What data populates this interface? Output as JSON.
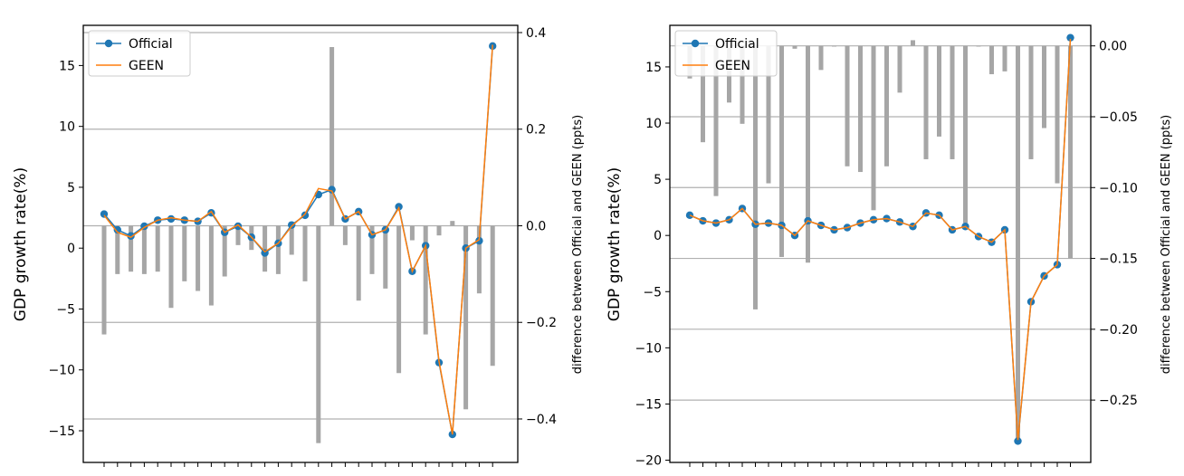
{
  "colors": {
    "official": "#1f77b4",
    "geen": "#ff7f0e",
    "bar": "#a6a6a6",
    "grid": "#b0b0b0"
  },
  "chart_data": [
    {
      "type": "line+bar",
      "ylabel": "GDP growth rate(%)",
      "y2label": "difference between Official and GEEN (ppts)",
      "ylim": [
        -17.6,
        18.3
      ],
      "y2lim": [
        -0.49,
        0.415
      ],
      "yticks": [
        15,
        10,
        5,
        0,
        -5,
        -10,
        -15
      ],
      "ytick_labels": [
        "15",
        "10",
        "5",
        "0",
        "−5",
        "−10",
        "−15"
      ],
      "y2ticks": [
        0.4,
        0.2,
        0.0,
        -0.2,
        -0.4
      ],
      "y2tick_labels": [
        "0.4",
        "0.2",
        "0.0",
        "−0.2",
        "−0.4"
      ],
      "legend": {
        "position": "top-left",
        "entries": [
          "Official",
          "GEEN"
        ]
      },
      "series": [
        {
          "name": "Official",
          "values": [
            2.8,
            1.5,
            1.0,
            1.8,
            2.3,
            2.4,
            2.3,
            2.2,
            2.9,
            1.3,
            1.8,
            0.9,
            -0.4,
            0.4,
            1.9,
            2.7,
            4.4,
            4.8,
            2.4,
            3.0,
            1.1,
            1.5,
            3.4,
            -1.9,
            0.2,
            -9.4,
            -15.3,
            0.0,
            0.6,
            16.6
          ]
        },
        {
          "name": "GEEN",
          "values": [
            2.7,
            1.3,
            0.9,
            1.7,
            2.3,
            2.5,
            2.3,
            2.2,
            3.0,
            1.3,
            1.9,
            0.9,
            -0.3,
            0.4,
            1.8,
            2.8,
            4.9,
            4.7,
            2.4,
            3.0,
            1.1,
            1.5,
            3.3,
            -1.9,
            0.2,
            -9.3,
            -15.3,
            0.0,
            0.7,
            16.7
          ]
        }
      ],
      "differences": [
        -0.225,
        -0.1,
        -0.095,
        -0.1,
        -0.095,
        -0.17,
        -0.115,
        -0.135,
        -0.165,
        -0.105,
        -0.04,
        -0.05,
        -0.095,
        -0.1,
        -0.06,
        -0.115,
        -0.45,
        0.37,
        -0.04,
        -0.155,
        -0.1,
        -0.13,
        -0.305,
        -0.03,
        -0.225,
        -0.02,
        0.01,
        -0.38,
        -0.14,
        -0.29
      ]
    },
    {
      "type": "line+bar",
      "ylabel": "GDP growth rate(%)",
      "y2label": "difference between Official and GEEN (ppts)",
      "ylim": [
        -20.2,
        18.7
      ],
      "y2lim": [
        -0.294,
        0.0145
      ],
      "yticks": [
        15,
        10,
        5,
        0,
        -5,
        -10,
        -15,
        -20
      ],
      "ytick_labels": [
        "15",
        "10",
        "5",
        "0",
        "−5",
        "−10",
        "−15",
        "−20"
      ],
      "y2ticks": [
        0.0,
        -0.05,
        -0.1,
        -0.15,
        -0.2,
        -0.25
      ],
      "y2tick_labels": [
        "0.00",
        "−0.05",
        "−0.10",
        "−0.15",
        "−0.20",
        "−0.25"
      ],
      "legend": {
        "position": "top-left",
        "entries": [
          "Official",
          "GEEN"
        ]
      },
      "series": [
        {
          "name": "Official",
          "values": [
            1.8,
            1.3,
            1.1,
            1.4,
            2.4,
            1.0,
            1.1,
            0.9,
            0.0,
            1.3,
            0.9,
            0.5,
            0.7,
            1.1,
            1.4,
            1.5,
            1.2,
            0.8,
            2.0,
            1.8,
            0.5,
            0.8,
            -0.1,
            -0.6,
            0.5,
            -18.3,
            -5.9,
            -3.6,
            -2.6,
            17.6
          ]
        },
        {
          "name": "GEEN",
          "values": [
            1.8,
            1.3,
            1.1,
            1.4,
            2.4,
            1.0,
            1.1,
            0.9,
            0.0,
            1.3,
            0.9,
            0.5,
            0.7,
            1.1,
            1.4,
            1.5,
            1.2,
            0.8,
            2.0,
            1.8,
            0.5,
            0.8,
            -0.1,
            -0.6,
            0.5,
            -18.2,
            -5.9,
            -3.6,
            -2.6,
            17.5
          ]
        }
      ],
      "differences": [
        -0.023,
        -0.068,
        -0.106,
        -0.04,
        -0.055,
        -0.186,
        -0.097,
        -0.149,
        -0.002,
        -0.153,
        -0.017,
        0.0,
        -0.085,
        -0.089,
        -0.116,
        -0.085,
        -0.033,
        0.004,
        -0.08,
        -0.064,
        -0.08,
        -0.125,
        0.0,
        -0.02,
        -0.018,
        -0.279,
        -0.08,
        -0.058,
        -0.097,
        -0.15
      ]
    }
  ]
}
